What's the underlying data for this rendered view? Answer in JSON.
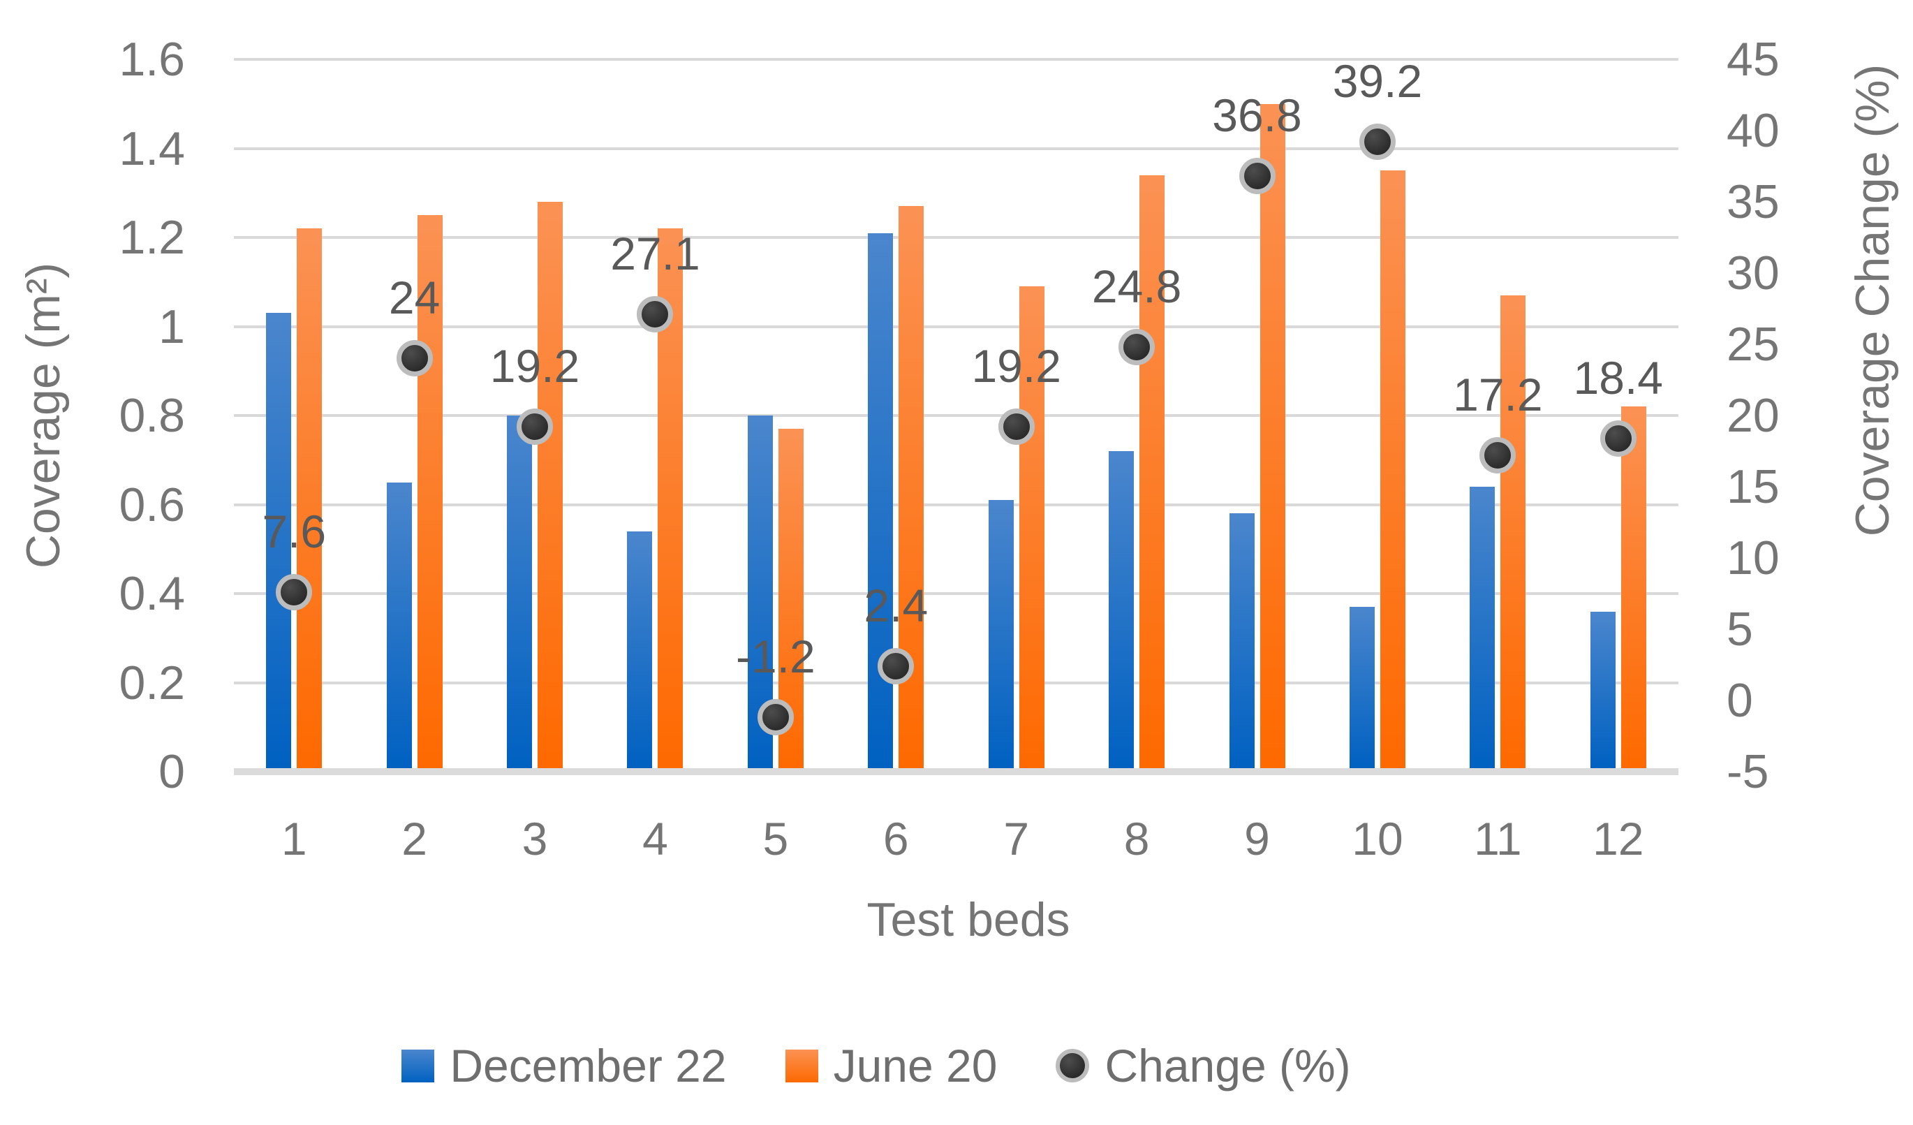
{
  "chart_data": {
    "type": "bar",
    "title": "",
    "categories": [
      "1",
      "2",
      "3",
      "4",
      "5",
      "6",
      "7",
      "8",
      "9",
      "10",
      "11",
      "12"
    ],
    "series": [
      {
        "name": "December 22",
        "type": "bar",
        "axis": "left",
        "values": [
          1.03,
          0.65,
          0.8,
          0.54,
          0.8,
          1.21,
          0.61,
          0.72,
          0.58,
          0.37,
          0.64,
          0.36
        ],
        "color_top": "#4b86cd",
        "color_bottom": "#0061c1"
      },
      {
        "name": "June 20",
        "type": "bar",
        "axis": "left",
        "values": [
          1.22,
          1.25,
          1.28,
          1.22,
          0.77,
          1.27,
          1.09,
          1.34,
          1.5,
          1.35,
          1.07,
          0.82
        ],
        "color_top": "#fb9254",
        "color_bottom": "#fe6900"
      },
      {
        "name": "Change (%)",
        "type": "scatter",
        "axis": "right",
        "values": [
          7.6,
          24,
          19.2,
          27.1,
          -1.2,
          2.4,
          19.2,
          24.8,
          36.8,
          39.2,
          17.2,
          18.4
        ],
        "labels": [
          "7.6",
          "24",
          "19.2",
          "27.1",
          "-1.2",
          "2.4",
          "19.2",
          "24.8",
          "36.8",
          "39.2",
          "17.2",
          "18.4"
        ],
        "marker_fill": "#333333",
        "marker_ring": "#bcbcbc"
      }
    ],
    "xlabel": "Test beds",
    "left_axis": {
      "label": "Coverage (m²)",
      "min": 0,
      "max": 1.6,
      "ticks": [
        "0",
        "0.2",
        "0.4",
        "0.6",
        "0.8",
        "1",
        "1.2",
        "1.4",
        "1.6"
      ]
    },
    "right_axis": {
      "label": "Coverage Change (%)",
      "min": -5,
      "max": 45,
      "ticks": [
        "-5",
        "0",
        "5",
        "10",
        "15",
        "20",
        "25",
        "30",
        "35",
        "40",
        "45"
      ]
    },
    "grid": true,
    "gridline_color": "#d9d9d9",
    "legend_position": "bottom"
  },
  "legend": {
    "items": [
      {
        "label": "December 22"
      },
      {
        "label": "June 20"
      },
      {
        "label": "Change (%)"
      }
    ]
  },
  "text_colors": {
    "ticks": "#757575",
    "data_labels": "#595959",
    "legend": "#6e6e6e"
  }
}
